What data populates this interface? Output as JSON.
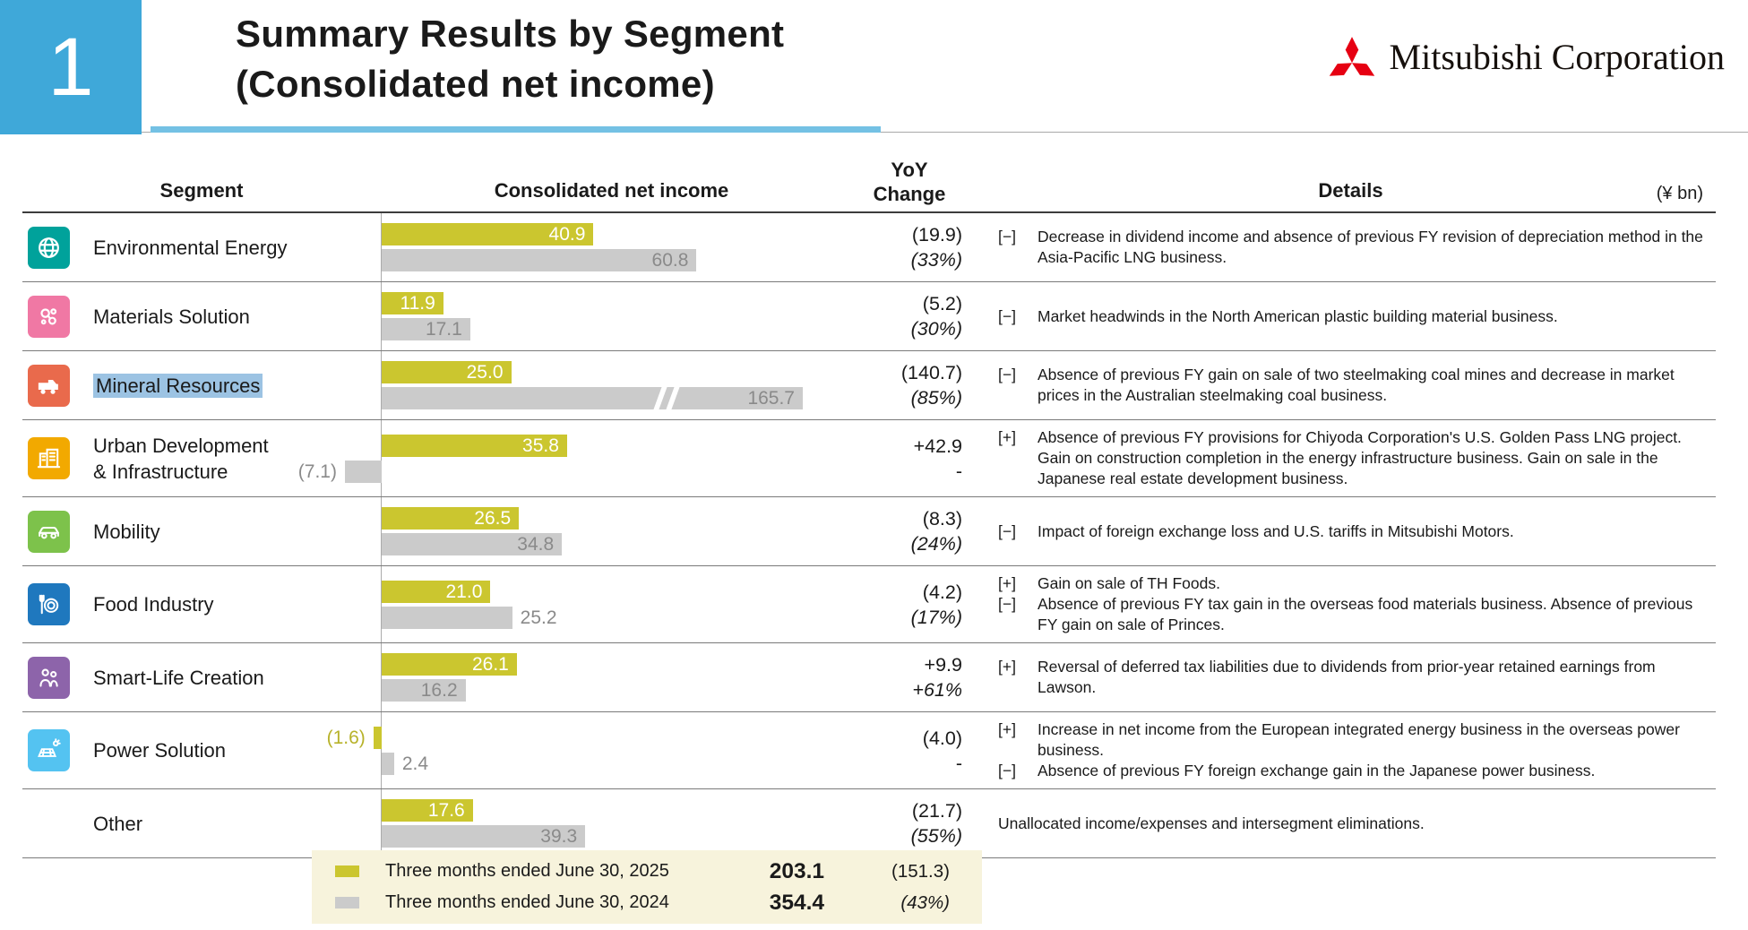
{
  "page": {
    "slide_number": "1",
    "title_line1": "Summary Results by Segment",
    "title_line2": "(Consolidated net income)",
    "logo_text": "Mitsubishi Corporation",
    "unit_note": "(¥ bn)"
  },
  "colors": {
    "accent_blue": "#3FA8D9",
    "underline_blue": "#74C1E4",
    "bar_2025": "#CBC62F",
    "bar_2024": "#CBCBCB",
    "highlight_blue": "#9CC3E3",
    "mitsubishi_red": "#E60012",
    "legend_bg": "#F7F3DC"
  },
  "table": {
    "headers": {
      "segment": "Segment",
      "income": "Consolidated net income",
      "yoy_line1": "YoY",
      "yoy_line2": "Change",
      "details": "Details"
    },
    "rows": [
      {
        "segment": "Environmental Energy",
        "icon": "globe-icon",
        "icon_color": "#00A29B",
        "highlighted": false,
        "bars": {
          "y2025": {
            "value": 40.9,
            "label": "40.9"
          },
          "y2024": {
            "value": 60.8,
            "label": "60.8"
          }
        },
        "yoy": {
          "line1": "(19.9)",
          "line2": "(33%)",
          "line2_italic": true
        },
        "details": [
          {
            "sign": "[−]",
            "text": "Decrease in dividend income and absence of previous FY revision of depreciation method in the Asia-Pacific LNG business."
          }
        ]
      },
      {
        "segment": "Materials Solution",
        "icon": "molecules-icon",
        "icon_color": "#F078A4",
        "highlighted": false,
        "bars": {
          "y2025": {
            "value": 11.9,
            "label": "11.9"
          },
          "y2024": {
            "value": 17.1,
            "label": "17.1"
          }
        },
        "yoy": {
          "line1": "(5.2)",
          "line2": "(30%)",
          "line2_italic": true
        },
        "details": [
          {
            "sign": "[−]",
            "text": "Market headwinds in the North American plastic building material business."
          }
        ]
      },
      {
        "segment": "Mineral Resources",
        "icon": "truck-icon",
        "icon_color": "#E96A4C",
        "highlighted": true,
        "bars": {
          "y2025": {
            "value": 25.0,
            "label": "25.0"
          },
          "y2024": {
            "value": 165.7,
            "label": "165.7"
          }
        },
        "yoy": {
          "line1": "(140.7)",
          "line2": "(85%)",
          "line2_italic": true
        },
        "details": [
          {
            "sign": "[−]",
            "text": "Absence of previous FY gain on sale of two steelmaking coal mines and decrease in market prices in the Australian steelmaking coal business."
          }
        ]
      },
      {
        "segment": "Urban Development",
        "segment_line2": "& Infrastructure",
        "icon": "buildings-icon",
        "icon_color": "#F2A900",
        "highlighted": false,
        "bars": {
          "y2025": {
            "value": 35.8,
            "label": "35.8"
          },
          "y2024": {
            "value": -7.1,
            "label": "(7.1)"
          }
        },
        "yoy": {
          "line1": "+42.9",
          "line2": "-",
          "line2_italic": false
        },
        "details": [
          {
            "sign": "[+]",
            "text": "Absence of previous FY provisions for Chiyoda Corporation's U.S. Golden Pass LNG project. Gain on construction completion in the energy infrastructure business. Gain on sale in the Japanese real estate development business."
          }
        ]
      },
      {
        "segment": "Mobility",
        "icon": "car-icon",
        "icon_color": "#7DC24B",
        "highlighted": false,
        "bars": {
          "y2025": {
            "value": 26.5,
            "label": "26.5"
          },
          "y2024": {
            "value": 34.8,
            "label": "34.8"
          }
        },
        "yoy": {
          "line1": "(8.3)",
          "line2": "(24%)",
          "line2_italic": true
        },
        "details": [
          {
            "sign": "[−]",
            "text": "Impact of foreign exchange loss and U.S. tariffs in Mitsubishi Motors."
          }
        ]
      },
      {
        "segment": "Food Industry",
        "icon": "food-icon",
        "icon_color": "#1F78BE",
        "highlighted": false,
        "bars": {
          "y2025": {
            "value": 21.0,
            "label": "21.0"
          },
          "y2024": {
            "value": 25.2,
            "label": "25.2",
            "label_outside": true
          }
        },
        "yoy": {
          "line1": "(4.2)",
          "line2": "(17%)",
          "line2_italic": true
        },
        "details": [
          {
            "sign": "[+]",
            "text": "Gain on sale of TH Foods."
          },
          {
            "sign": "[−]",
            "text": "Absence of previous FY tax gain in the overseas food materials business. Absence of previous FY gain on sale of Princes."
          }
        ]
      },
      {
        "segment": "Smart-Life Creation",
        "icon": "people-icon",
        "icon_color": "#8D64AA",
        "highlighted": false,
        "bars": {
          "y2025": {
            "value": 26.1,
            "label": "26.1"
          },
          "y2024": {
            "value": 16.2,
            "label": "16.2"
          }
        },
        "yoy": {
          "line1": "+9.9",
          "line2": "+61%",
          "line2_italic": true
        },
        "details": [
          {
            "sign": "[+]",
            "text": "Reversal of deferred tax liabilities due to dividends from prior-year retained earnings from Lawson."
          }
        ]
      },
      {
        "segment": "Power Solution",
        "icon": "power-icon",
        "icon_color": "#54C3F1",
        "highlighted": false,
        "bars": {
          "y2025": {
            "value": -1.6,
            "label": "(1.6)"
          },
          "y2024": {
            "value": 2.4,
            "label": "2.4",
            "label_outside": true
          }
        },
        "yoy": {
          "line1": "(4.0)",
          "line2": "-",
          "line2_italic": false
        },
        "details": [
          {
            "sign": "[+]",
            "text": "Increase in net income from the European integrated energy business in the overseas power business."
          },
          {
            "sign": "[−]",
            "text": "Absence of previous FY foreign exchange gain in the Japanese power business."
          }
        ]
      },
      {
        "segment": "Other",
        "icon": null,
        "icon_color": null,
        "highlighted": false,
        "bars": {
          "y2025": {
            "value": 17.6,
            "label": "17.6"
          },
          "y2024": {
            "value": 39.3,
            "label": "39.3"
          }
        },
        "yoy": {
          "line1": "(21.7)",
          "line2": "(55%)",
          "line2_italic": true
        },
        "details": [
          {
            "sign": null,
            "text": "Unallocated income/expenses and intersegment eliminations."
          }
        ]
      }
    ]
  },
  "legend": {
    "items": [
      {
        "label": "Three months ended June 30, 2025",
        "total": "203.1",
        "change": "(151.3)",
        "color": "#CBC62F"
      },
      {
        "label": "Three months ended June 30, 2024",
        "total": "354.4",
        "change": "(43%)",
        "color": "#CBCBCB"
      }
    ]
  },
  "chart_data": {
    "type": "bar",
    "orientation": "horizontal",
    "title": "Summary Results by Segment (Consolidated net income)",
    "unit": "¥ bn",
    "categories": [
      "Environmental Energy",
      "Materials Solution",
      "Mineral Resources",
      "Urban Development & Infrastructure",
      "Mobility",
      "Food Industry",
      "Smart-Life Creation",
      "Power Solution",
      "Other"
    ],
    "series": [
      {
        "name": "Three months ended June 30, 2025",
        "values": [
          40.9,
          11.9,
          25.0,
          35.8,
          26.5,
          21.0,
          26.1,
          -1.6,
          17.6
        ],
        "total": 203.1
      },
      {
        "name": "Three months ended June 30, 2024",
        "values": [
          60.8,
          17.1,
          165.7,
          -7.1,
          34.8,
          25.2,
          16.2,
          2.4,
          39.3
        ],
        "total": 354.4
      }
    ],
    "yoy_change": [
      "(19.9)",
      "(5.2)",
      "(140.7)",
      "+42.9",
      "(8.3)",
      "(4.2)",
      "+9.9",
      "(4.0)",
      "(21.7)"
    ],
    "yoy_change_pct": [
      "(33%)",
      "(30%)",
      "(85%)",
      "-",
      "(24%)",
      "(17%)",
      "+61%",
      "-",
      "(55%)"
    ],
    "total_change": "(151.3)",
    "total_change_pct": "(43%)",
    "axis_break": {
      "category": "Mineral Resources",
      "series": "Three months ended June 30, 2024"
    },
    "legend_position": "bottom",
    "grid": false
  }
}
